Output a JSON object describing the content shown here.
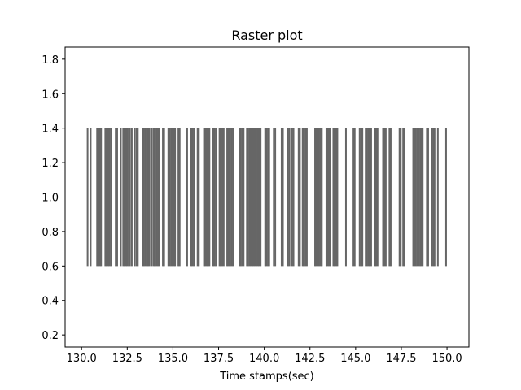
{
  "chart_data": {
    "type": "scatter",
    "subtype": "raster",
    "title": "Raster plot",
    "xlabel": "Time stamps(sec)",
    "ylabel": "",
    "xlim": [
      129.1,
      151.2
    ],
    "ylim": [
      0.13,
      1.87
    ],
    "x_ticks": [
      130.0,
      132.5,
      135.0,
      137.5,
      140.0,
      142.5,
      145.0,
      147.5,
      150.0
    ],
    "x_tick_labels": [
      "130.0",
      "132.5",
      "135.0",
      "137.5",
      "140.0",
      "142.5",
      "145.0",
      "147.5",
      "150.0"
    ],
    "y_ticks": [
      0.2,
      0.4,
      0.6,
      0.8,
      1.0,
      1.2,
      1.4,
      1.6,
      1.8
    ],
    "y_tick_labels": [
      "0.2",
      "0.4",
      "0.6",
      "0.8",
      "1.0",
      "1.2",
      "1.4",
      "1.6",
      "1.8"
    ],
    "line_range": [
      0.6,
      1.4
    ],
    "grid": false,
    "color": "#666666",
    "series": [
      {
        "values": [
          130.33,
          130.5,
          130.85,
          130.92,
          131.0,
          131.07,
          131.3,
          131.37,
          131.45,
          131.52,
          131.6,
          131.87,
          131.95,
          132.15,
          132.28,
          132.35,
          132.43,
          132.5,
          132.58,
          132.65,
          132.75,
          132.9,
          133.0,
          133.08,
          133.35,
          133.42,
          133.5,
          133.58,
          133.65,
          133.72,
          133.85,
          133.95,
          134.02,
          134.1,
          134.18,
          134.26,
          134.45,
          134.52,
          134.75,
          134.82,
          134.9,
          134.98,
          135.05,
          135.12,
          135.3,
          135.37,
          135.78,
          136.0,
          136.07,
          136.15,
          136.35,
          136.42,
          136.7,
          136.77,
          136.85,
          136.92,
          137.0,
          137.2,
          137.27,
          137.35,
          137.55,
          137.62,
          137.7,
          137.78,
          137.97,
          138.04,
          138.12,
          138.2,
          138.28,
          138.65,
          138.72,
          138.8,
          138.87,
          139.05,
          139.12,
          139.2,
          139.28,
          139.35,
          139.42,
          139.5,
          139.57,
          139.65,
          139.72,
          139.8,
          140.05,
          140.12,
          140.2,
          140.27,
          140.52,
          140.6,
          140.95,
          141.02,
          141.3,
          141.38,
          141.52,
          141.6,
          141.88,
          141.95,
          142.1,
          142.17,
          142.25,
          142.33,
          142.78,
          142.85,
          142.92,
          143.0,
          143.08,
          143.15,
          143.4,
          143.47,
          143.55,
          143.62,
          143.78,
          143.85,
          143.92,
          144.0,
          144.47,
          144.88,
          144.95,
          145.22,
          145.3,
          145.37,
          145.55,
          145.62,
          145.7,
          145.77,
          145.85,
          146.05,
          146.12,
          146.2,
          146.5,
          146.57,
          146.65,
          146.85,
          146.92,
          147.4,
          147.47,
          147.6,
          147.67,
          148.15,
          148.22,
          148.3,
          148.38,
          148.45,
          148.53,
          148.6,
          148.67,
          148.9,
          148.97,
          149.17,
          149.25,
          149.32,
          149.5,
          149.95
        ]
      }
    ]
  }
}
